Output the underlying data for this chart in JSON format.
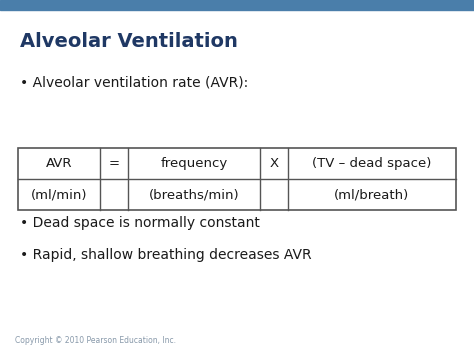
{
  "title": "Alveolar Ventilation",
  "title_color": "#1F3864",
  "background_color": "#FFFFFF",
  "top_bar_color": "#4A7EAA",
  "bullet1": "Alveolar ventilation rate (AVR):",
  "table": {
    "row1": [
      "AVR",
      "=",
      "frequency",
      "X",
      "(TV – dead space)"
    ],
    "row2": [
      "(ml/min)",
      "",
      "(breaths/min)",
      "",
      "(ml/breath)"
    ]
  },
  "bullet2": "Dead space is normally constant",
  "bullet3": "Rapid, shallow breathing decreases AVR",
  "copyright": "Copyright © 2010 Pearson Education, Inc.",
  "bullet_color": "#1a1a1a",
  "table_text_color": "#1a1a1a",
  "table_border_color": "#555555",
  "text_fontsize": 9.5,
  "title_fontsize": 14,
  "bullet_fontsize": 10,
  "copyright_fontsize": 5.5,
  "figsize": [
    4.74,
    3.55
  ],
  "dpi": 100
}
